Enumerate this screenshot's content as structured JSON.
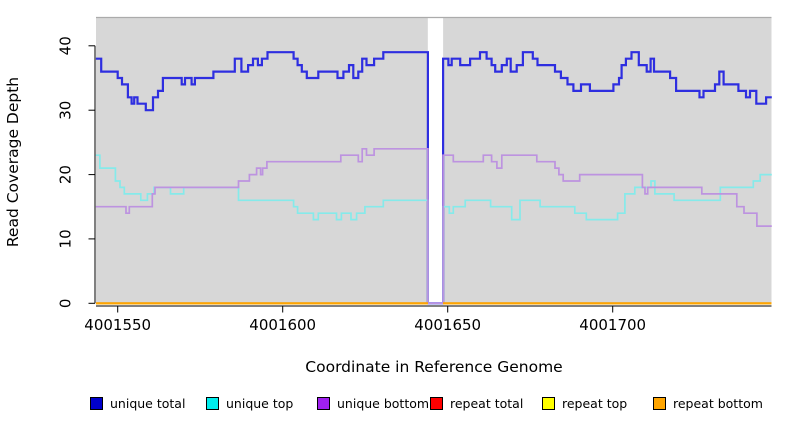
{
  "chart_data": {
    "type": "line",
    "subtype": "step-after",
    "title": "",
    "xlabel": "Coordinate in Reference Genome",
    "ylabel": "Read Coverage Depth",
    "xlim": [
      4001543.4,
      4001748.2
    ],
    "ylim": [
      0,
      43
    ],
    "x_ticks": [
      4001550,
      4001600,
      4001650,
      4001700
    ],
    "y_ticks": [
      0,
      10,
      20,
      30,
      40
    ],
    "grid": "off",
    "legend_position": "bottom",
    "panel_bg": "#d7d7d7",
    "gap": {
      "start": 4001644,
      "end": 4001648.6,
      "note": "white column; coverage drops to 0"
    },
    "series": [
      {
        "name": "unique total",
        "swatch_color": "#0000CD",
        "line_color": "#2e2ee0",
        "width": 2.2,
        "points": [
          [
            4001543.4,
            38
          ],
          [
            4001545,
            36
          ],
          [
            4001550,
            35
          ],
          [
            4001551.3,
            34
          ],
          [
            4001553.1,
            32
          ],
          [
            4001554.2,
            31
          ],
          [
            4001555,
            32
          ],
          [
            4001556,
            31
          ],
          [
            4001558.5,
            30
          ],
          [
            4001560.7,
            32
          ],
          [
            4001562.2,
            33
          ],
          [
            4001563.7,
            35
          ],
          [
            4001569.4,
            34
          ],
          [
            4001570.4,
            35
          ],
          [
            4001572.4,
            34
          ],
          [
            4001573.4,
            35
          ],
          [
            4001579,
            36
          ],
          [
            4001585.5,
            38
          ],
          [
            4001587.5,
            36
          ],
          [
            4001589.5,
            37
          ],
          [
            4001591,
            38
          ],
          [
            4001592.5,
            37
          ],
          [
            4001593.7,
            38
          ],
          [
            4001595.4,
            39
          ],
          [
            4001603.3,
            38
          ],
          [
            4001604.5,
            37
          ],
          [
            4001605.8,
            36
          ],
          [
            4001607.3,
            35
          ],
          [
            4001610.8,
            36
          ],
          [
            4001616.6,
            35
          ],
          [
            4001618.4,
            36
          ],
          [
            4001620.1,
            37
          ],
          [
            4001621.4,
            35
          ],
          [
            4001622.9,
            36
          ],
          [
            4001624.1,
            38
          ],
          [
            4001625.4,
            37
          ],
          [
            4001627.7,
            38
          ],
          [
            4001630.5,
            39
          ],
          [
            4001644,
            0
          ],
          [
            4001648.6,
            38
          ],
          [
            4001650.2,
            37
          ],
          [
            4001651.2,
            38
          ],
          [
            4001653.8,
            37
          ],
          [
            4001656.8,
            38
          ],
          [
            4001659.8,
            39
          ],
          [
            4001661.8,
            38
          ],
          [
            4001663.3,
            37
          ],
          [
            4001664.4,
            36
          ],
          [
            4001666.4,
            37
          ],
          [
            4001667.9,
            38
          ],
          [
            4001669.1,
            36
          ],
          [
            4001670.9,
            37
          ],
          [
            4001672.8,
            39
          ],
          [
            4001675.8,
            38
          ],
          [
            4001677.2,
            37
          ],
          [
            4001682.5,
            36
          ],
          [
            4001684.3,
            35
          ],
          [
            4001686.3,
            34
          ],
          [
            4001688.1,
            33
          ],
          [
            4001690.4,
            34
          ],
          [
            4001693.1,
            33
          ],
          [
            4001700.2,
            34
          ],
          [
            4001701.9,
            35
          ],
          [
            4001702.7,
            37
          ],
          [
            4001704,
            38
          ],
          [
            4001705.7,
            39
          ],
          [
            4001707.9,
            37
          ],
          [
            4001710.3,
            36
          ],
          [
            4001711.5,
            38
          ],
          [
            4001712.5,
            36
          ],
          [
            4001717.4,
            35
          ],
          [
            4001719.2,
            33
          ],
          [
            4001726.3,
            32
          ],
          [
            4001727.5,
            33
          ],
          [
            4001731,
            34
          ],
          [
            4001732.3,
            36
          ],
          [
            4001733.6,
            34
          ],
          [
            4001738.1,
            33
          ],
          [
            4001740.4,
            32
          ],
          [
            4001741.6,
            33
          ],
          [
            4001743.5,
            31
          ],
          [
            4001746.5,
            32
          ],
          [
            4001748.2,
            32
          ]
        ]
      },
      {
        "name": "unique top",
        "swatch_color": "#00EEEE",
        "line_color": "#85eaea",
        "width": 1.7,
        "points": [
          [
            4001543.4,
            23
          ],
          [
            4001544.6,
            21
          ],
          [
            4001549.3,
            19
          ],
          [
            4001550.7,
            18
          ],
          [
            4001552,
            17
          ],
          [
            4001557,
            16
          ],
          [
            4001559,
            17
          ],
          [
            4001561,
            18
          ],
          [
            4001566,
            17
          ],
          [
            4001570,
            18
          ],
          [
            4001586.6,
            16
          ],
          [
            4001603.3,
            15
          ],
          [
            4001604.5,
            14
          ],
          [
            4001609.3,
            13
          ],
          [
            4001610.8,
            14
          ],
          [
            4001616.3,
            13
          ],
          [
            4001617.8,
            14
          ],
          [
            4001620.7,
            13
          ],
          [
            4001622.4,
            14
          ],
          [
            4001624.9,
            15
          ],
          [
            4001630.5,
            16
          ],
          [
            4001644,
            0
          ],
          [
            4001648.6,
            15
          ],
          [
            4001650.5,
            14
          ],
          [
            4001651.7,
            15
          ],
          [
            4001655.3,
            16
          ],
          [
            4001663,
            15
          ],
          [
            4001669.4,
            13
          ],
          [
            4001671.9,
            16
          ],
          [
            4001678,
            15
          ],
          [
            4001688.5,
            14
          ],
          [
            4001692,
            13
          ],
          [
            4001701.5,
            14
          ],
          [
            4001703.7,
            17
          ],
          [
            4001706.7,
            18
          ],
          [
            4001711.6,
            19
          ],
          [
            4001712.8,
            17
          ],
          [
            4001718.6,
            16
          ],
          [
            4001732.6,
            18
          ],
          [
            4001742.6,
            19
          ],
          [
            4001744.7,
            20
          ],
          [
            4001748.2,
            20
          ]
        ]
      },
      {
        "name": "unique bottom",
        "swatch_color": "#A020F0",
        "line_color": "#bd93e0",
        "width": 1.7,
        "points": [
          [
            4001543.4,
            15
          ],
          [
            4001552.5,
            14
          ],
          [
            4001553.5,
            15
          ],
          [
            4001560.5,
            17
          ],
          [
            4001561.3,
            18
          ],
          [
            4001586.6,
            19
          ],
          [
            4001589.9,
            20
          ],
          [
            4001592.1,
            21
          ],
          [
            4001593.3,
            20
          ],
          [
            4001593.9,
            21
          ],
          [
            4001595.2,
            22
          ],
          [
            4001617.6,
            23
          ],
          [
            4001622.9,
            22
          ],
          [
            4001624.1,
            24
          ],
          [
            4001625.4,
            23
          ],
          [
            4001627.7,
            24
          ],
          [
            4001644,
            0
          ],
          [
            4001648.6,
            23
          ],
          [
            4001651.7,
            22
          ],
          [
            4001660.8,
            23
          ],
          [
            4001663.3,
            22
          ],
          [
            4001664.9,
            21
          ],
          [
            4001666.4,
            23
          ],
          [
            4001677,
            22
          ],
          [
            4001682.5,
            21
          ],
          [
            4001683.7,
            20
          ],
          [
            4001685,
            19
          ],
          [
            4001690,
            20
          ],
          [
            4001709,
            18
          ],
          [
            4001709.8,
            17
          ],
          [
            4001710.6,
            18
          ],
          [
            4001727,
            17
          ],
          [
            4001737.6,
            15
          ],
          [
            4001739.8,
            14
          ],
          [
            4001743.7,
            12
          ],
          [
            4001748.2,
            12
          ]
        ]
      },
      {
        "name": "repeat total",
        "swatch_color": "#FF0000",
        "line_color": "#dd0000",
        "width": 1.8,
        "gap_skip": true,
        "points": [
          [
            4001543.4,
            0
          ],
          [
            4001748.2,
            0
          ]
        ]
      },
      {
        "name": "repeat top",
        "swatch_color": "#FFFF00",
        "line_color": "#ffff00",
        "width": 1.8,
        "gap_skip": true,
        "points": [
          [
            4001543.4,
            0
          ],
          [
            4001748.2,
            0
          ]
        ]
      },
      {
        "name": "repeat bottom",
        "swatch_color": "#FFA500",
        "line_color": "#ffa500",
        "width": 1.8,
        "gap_skip": true,
        "points": [
          [
            4001543.4,
            0
          ],
          [
            4001748.2,
            0
          ]
        ]
      }
    ]
  },
  "legend_layout": {
    "item_lefts": [
      90,
      206,
      317,
      430,
      542,
      653
    ]
  }
}
